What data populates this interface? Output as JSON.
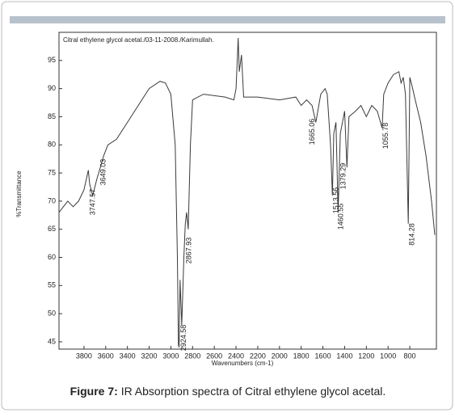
{
  "chart_data": {
    "type": "line",
    "title": "Citral ethylene glycol acetal./03-11-2008./Karimullah.",
    "x_label": "Wavenumbers (cm-1)",
    "y_label": "%Transmittance",
    "caption_label": "Figure 7:",
    "caption_text": "IR Absorption spectra of Citral ethylene glycol acetal.",
    "color": "#3a3a3a",
    "x": [
      4030,
      3950,
      3900,
      3850,
      3800,
      3760,
      3747,
      3720,
      3680,
      3649,
      3620,
      3580,
      3500,
      3400,
      3300,
      3200,
      3100,
      3050,
      3000,
      2960,
      2940,
      2930,
      2924,
      2915,
      2900,
      2880,
      2867,
      2855,
      2840,
      2820,
      2800,
      2700,
      2500,
      2420,
      2400,
      2380,
      2370,
      2350,
      2330,
      2200,
      2000,
      1850,
      1800,
      1750,
      1700,
      1665,
      1620,
      1580,
      1560,
      1530,
      1513,
      1500,
      1480,
      1460,
      1440,
      1400,
      1379,
      1360,
      1300,
      1250,
      1200,
      1150,
      1100,
      1070,
      1055,
      1040,
      1000,
      950,
      900,
      880,
      860,
      840,
      814,
      800,
      780,
      750,
      700,
      650,
      600,
      570
    ],
    "values": [
      68,
      70,
      69,
      70,
      72,
      75.5,
      73,
      71,
      74,
      76,
      78,
      80,
      81,
      84,
      87,
      90,
      91.3,
      91,
      89,
      80,
      60,
      44.5,
      44,
      56,
      48,
      60,
      66,
      68,
      65,
      80,
      88,
      89,
      88.5,
      88,
      90,
      99,
      93,
      96,
      88.5,
      88.5,
      88,
      88.5,
      87,
      88,
      87,
      84,
      89,
      90,
      89,
      80,
      71,
      82,
      84,
      68,
      82,
      86,
      76,
      85,
      86,
      87,
      85,
      87,
      86,
      84,
      83,
      89,
      91,
      92.5,
      93,
      91,
      92,
      89,
      66,
      92,
      90.5,
      88,
      84,
      78,
      70,
      64
    ],
    "xlim": [
      4030,
      555
    ],
    "ylim": [
      43.7,
      100
    ],
    "xticks": [
      3800,
      3600,
      3400,
      3200,
      3000,
      2800,
      2600,
      2400,
      2200,
      2000,
      1800,
      1600,
      1400,
      1200,
      1000,
      800
    ],
    "yticks": [
      45,
      50,
      55,
      60,
      65,
      70,
      75,
      80,
      85,
      90,
      95
    ],
    "annotations": [
      {
        "value": 3747.57,
        "label": "3747.57"
      },
      {
        "value": 3649.03,
        "label": "3649.03"
      },
      {
        "value": 2924.58,
        "label": "2924.58"
      },
      {
        "value": 2867.93,
        "label": "2867.93"
      },
      {
        "value": 1665.06,
        "label": "1665.06"
      },
      {
        "value": 1513.56,
        "label": "1513.56"
      },
      {
        "value": 1460.55,
        "label": "1460.55"
      },
      {
        "value": 1379.29,
        "label": "1379.29"
      },
      {
        "value": 1055.78,
        "label": "1055.78"
      },
      {
        "value": 814.28,
        "label": "814.28"
      }
    ]
  }
}
